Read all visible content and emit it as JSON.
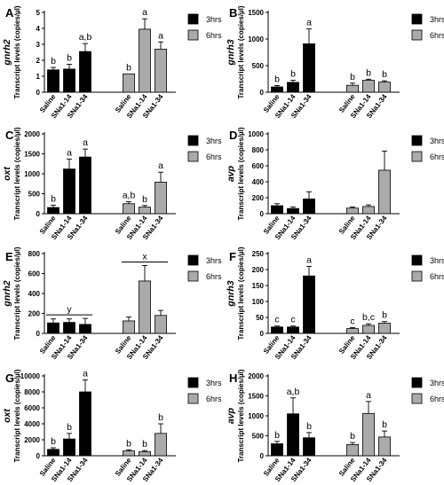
{
  "y_axis_label": "Transcript levels (copies/µl)",
  "chart_data": [
    {
      "panel": "A",
      "type": "bar",
      "gene": "gnrh2",
      "ylim": [
        0,
        5
      ],
      "yticks": [
        0,
        1,
        2,
        3,
        4,
        5
      ],
      "categories": [
        "Saline",
        "SNa1-14",
        "SNa1-34"
      ],
      "series": [
        {
          "name": "3hrs",
          "color": "#000000",
          "values": [
            1.4,
            1.45,
            2.55
          ],
          "errors": [
            0.15,
            0.3,
            0.5
          ],
          "labels": [
            "b",
            "b",
            "a,b"
          ]
        },
        {
          "name": "6hrs",
          "color": "#aaaaaa",
          "values": [
            1.15,
            3.95,
            2.7
          ],
          "errors": [
            0,
            0.65,
            0.45
          ],
          "labels": [
            "b",
            "a",
            "a"
          ]
        }
      ]
    },
    {
      "panel": "B",
      "type": "bar",
      "gene": "gnrh3",
      "ylim": [
        0,
        1500
      ],
      "yticks": [
        0,
        500,
        1000,
        1500
      ],
      "categories": [
        "Saline",
        "SNa1-14",
        "SNa1-34"
      ],
      "series": [
        {
          "name": "3hrs",
          "color": "#000000",
          "values": [
            100,
            185,
            910
          ],
          "errors": [
            25,
            40,
            280
          ],
          "labels": [
            "b",
            "b",
            "a"
          ]
        },
        {
          "name": "6hrs",
          "color": "#aaaaaa",
          "values": [
            130,
            225,
            190
          ],
          "errors": [
            40,
            20,
            25
          ],
          "labels": [
            "b",
            "b",
            "b"
          ]
        }
      ]
    },
    {
      "panel": "C",
      "type": "bar",
      "gene": "oxt",
      "ylim": [
        0,
        2000
      ],
      "yticks": [
        0,
        500,
        1000,
        1500,
        2000
      ],
      "categories": [
        "Saline",
        "SNa1-14",
        "SNa1-34"
      ],
      "series": [
        {
          "name": "3hrs",
          "color": "#000000",
          "values": [
            155,
            1120,
            1420
          ],
          "errors": [
            60,
            250,
            200
          ],
          "labels": [
            "b",
            "a",
            "a"
          ]
        },
        {
          "name": "6hrs",
          "color": "#aaaaaa",
          "values": [
            250,
            165,
            790
          ],
          "errors": [
            50,
            40,
            250
          ],
          "labels": [
            "a,b",
            "b",
            "a"
          ]
        }
      ]
    },
    {
      "panel": "D",
      "type": "bar",
      "gene": "avp",
      "ylim": [
        0,
        1000
      ],
      "yticks": [
        0,
        200,
        400,
        600,
        800,
        1000
      ],
      "categories": [
        "Saline",
        "SNa1-14",
        "SNa1-34"
      ],
      "series": [
        {
          "name": "3hrs",
          "color": "#000000",
          "values": [
            100,
            65,
            185
          ],
          "errors": [
            25,
            20,
            90
          ],
          "labels": [
            "",
            "",
            ""
          ]
        },
        {
          "name": "6hrs",
          "color": "#aaaaaa",
          "values": [
            70,
            90,
            545
          ],
          "errors": [
            15,
            20,
            240
          ],
          "labels": [
            "",
            "",
            ""
          ]
        }
      ]
    },
    {
      "panel": "E",
      "type": "bar",
      "gene": "gnrh2",
      "ylim": [
        0,
        800
      ],
      "yticks": [
        0,
        200,
        400,
        600,
        800
      ],
      "categories": [
        "Saline",
        "SNa1-14",
        "SNa1-34"
      ],
      "series": [
        {
          "name": "3hrs",
          "color": "#000000",
          "values": [
            105,
            110,
            90
          ],
          "errors": [
            40,
            35,
            60
          ],
          "labels": [
            "",
            "",
            ""
          ],
          "group_label": "y"
        },
        {
          "name": "6hrs",
          "color": "#aaaaaa",
          "values": [
            125,
            525,
            180
          ],
          "errors": [
            40,
            155,
            50
          ],
          "labels": [
            "",
            "",
            ""
          ],
          "group_label": "x"
        }
      ]
    },
    {
      "panel": "F",
      "type": "bar",
      "gene": "gnrh3",
      "ylim": [
        0,
        250
      ],
      "yticks": [
        0,
        50,
        100,
        150,
        200,
        250
      ],
      "categories": [
        "Saline",
        "SNa1-14",
        "SNa1-34"
      ],
      "series": [
        {
          "name": "3hrs",
          "color": "#000000",
          "values": [
            20,
            20,
            180
          ],
          "errors": [
            3,
            3,
            30
          ],
          "labels": [
            "c",
            "c",
            "a"
          ]
        },
        {
          "name": "6hrs",
          "color": "#aaaaaa",
          "values": [
            15,
            25,
            32
          ],
          "errors": [
            3,
            5,
            5
          ],
          "labels": [
            "c",
            "b,c",
            "b"
          ]
        }
      ]
    },
    {
      "panel": "G",
      "type": "bar",
      "gene": "oxt",
      "ylim": [
        0,
        10000
      ],
      "yticks": [
        0,
        2000,
        4000,
        6000,
        8000,
        10000
      ],
      "categories": [
        "Saline",
        "SNa1-14",
        "SNa1-34"
      ],
      "series": [
        {
          "name": "3hrs",
          "color": "#000000",
          "values": [
            800,
            2100,
            8000
          ],
          "errors": [
            200,
            700,
            1500
          ],
          "labels": [
            "b",
            "b",
            "a"
          ]
        },
        {
          "name": "6hrs",
          "color": "#aaaaaa",
          "values": [
            600,
            500,
            2800
          ],
          "errors": [
            150,
            150,
            1200
          ],
          "labels": [
            "b",
            "b",
            "b"
          ]
        }
      ]
    },
    {
      "panel": "H",
      "type": "bar",
      "gene": "avp",
      "ylim": [
        0,
        2000
      ],
      "yticks": [
        0,
        500,
        1000,
        1500,
        2000
      ],
      "categories": [
        "Saline",
        "SNa1-14",
        "SNa1-34"
      ],
      "series": [
        {
          "name": "3hrs",
          "color": "#000000",
          "values": [
            300,
            1050,
            450
          ],
          "errors": [
            60,
            400,
            130
          ],
          "labels": [
            "b",
            "a,b",
            "b"
          ]
        },
        {
          "name": "6hrs",
          "color": "#aaaaaa",
          "values": [
            280,
            1060,
            470
          ],
          "errors": [
            50,
            300,
            150
          ],
          "labels": [
            "b",
            "a",
            "b"
          ]
        }
      ]
    }
  ]
}
